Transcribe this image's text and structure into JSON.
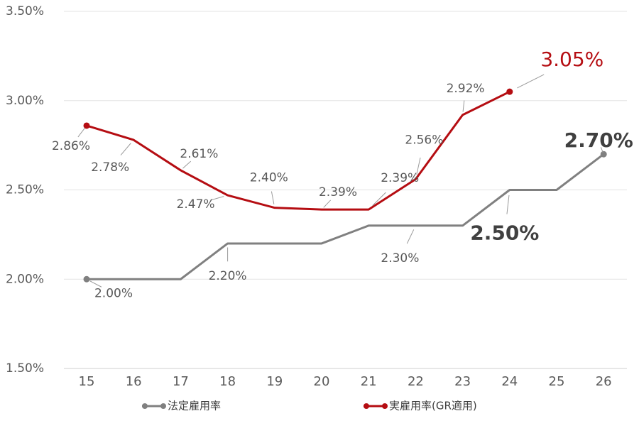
{
  "chart_data": {
    "type": "line",
    "categories": [
      "15",
      "16",
      "17",
      "18",
      "19",
      "20",
      "21",
      "22",
      "23",
      "24",
      "25",
      "26"
    ],
    "ylim": [
      1.5,
      3.5
    ],
    "yticks": [
      {
        "value": 1.5,
        "label": "1.50%"
      },
      {
        "value": 2.0,
        "label": "2.00%"
      },
      {
        "value": 2.5,
        "label": "2.50%"
      },
      {
        "value": 3.0,
        "label": "3.00%"
      },
      {
        "value": 3.5,
        "label": "3.50%"
      }
    ],
    "grid": true,
    "legend": "bottom",
    "series": [
      {
        "name": "法定雇用率",
        "color": "#808080",
        "values": [
          2.0,
          2.0,
          2.0,
          2.2,
          2.2,
          2.2,
          2.3,
          2.3,
          2.3,
          2.5,
          2.5,
          2.7
        ],
        "value_labels": [
          "2.00%",
          null,
          null,
          "2.20%",
          null,
          null,
          null,
          "2.30%",
          null,
          "2.50%",
          null,
          "2.70%"
        ]
      },
      {
        "name": "実雇用率(GR適用)",
        "color": "#b50d12",
        "values": [
          2.86,
          2.78,
          2.61,
          2.47,
          2.4,
          2.39,
          2.39,
          2.56,
          2.92,
          3.05,
          null,
          null
        ],
        "value_labels": [
          "2.86%",
          "2.78%",
          "2.61%",
          "2.47%",
          "2.40%",
          "2.39%",
          "2.39%",
          "2.56%",
          "2.92%",
          "3.05%",
          null,
          null
        ]
      }
    ]
  }
}
